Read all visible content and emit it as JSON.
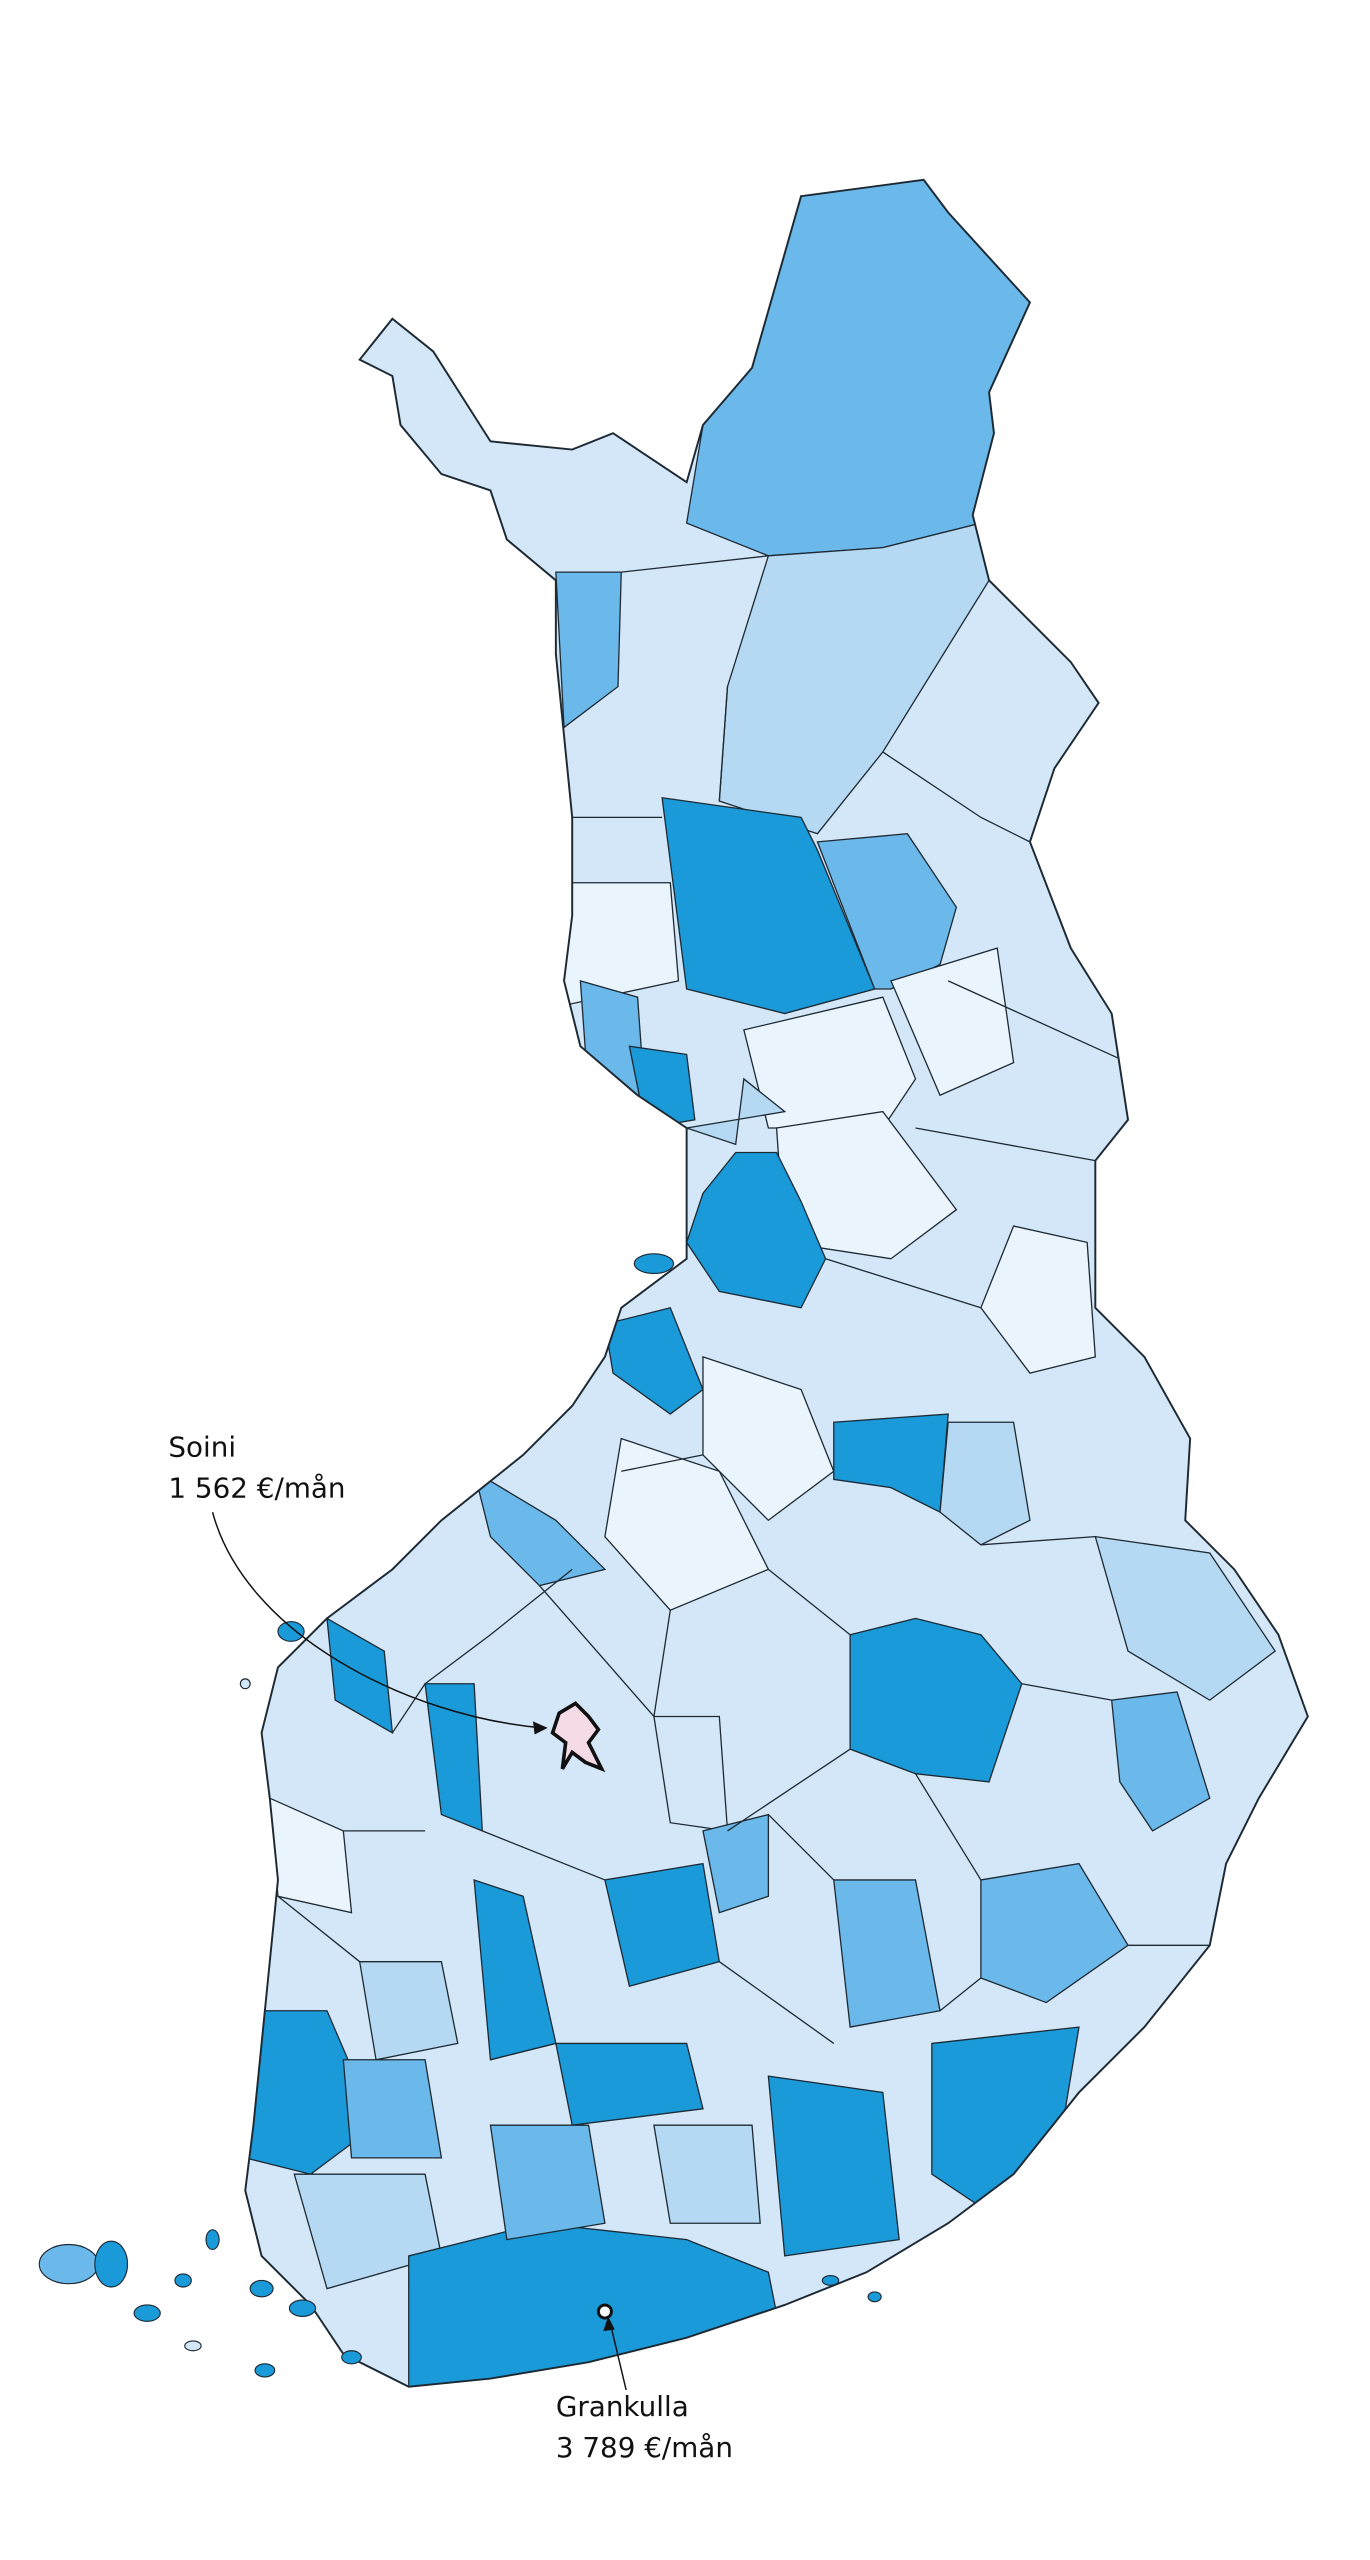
{
  "annotations": [
    {
      "name": "Soini",
      "value": "1 562 €/mån"
    },
    {
      "name": "Grankulla",
      "value": "3 789 €/mån"
    }
  ]
}
